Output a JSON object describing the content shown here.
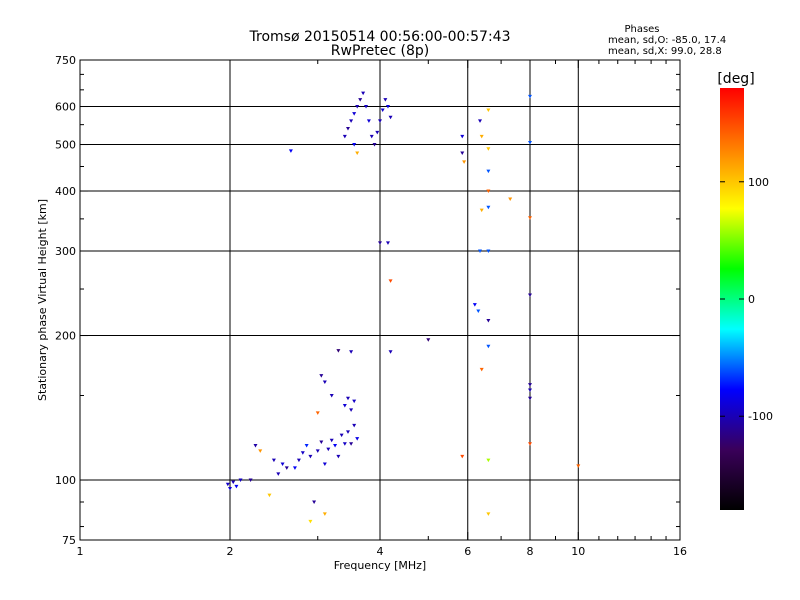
{
  "chart_data": {
    "type": "scatter",
    "title": "Tromsø 20150514 00:56:00-00:57:43",
    "subtitle": "RwPretec (8p)",
    "xlabel": "Frequency [MHz]",
    "ylabel": "Stationary phase Virtual Height [km]",
    "x_scale": "log2",
    "y_scale": "log",
    "xlim": [
      1,
      16
    ],
    "ylim": [
      75,
      750
    ],
    "x_ticks": [
      1,
      2,
      4,
      6,
      8,
      10,
      16
    ],
    "x_tick_labels": [
      "1",
      "2",
      "4",
      "6",
      "8",
      "10",
      "16"
    ],
    "x_minor_ticks": [
      3,
      5,
      7,
      9,
      11,
      12,
      13,
      14,
      15
    ],
    "y_ticks": [
      75,
      100,
      200,
      300,
      400,
      500,
      600,
      750
    ],
    "y_tick_labels": [
      "75",
      "100",
      "200",
      "300",
      "400",
      "500",
      "600",
      "750"
    ],
    "y_minor_ticks": [
      80,
      90,
      150,
      250,
      350,
      450,
      550,
      650,
      700
    ],
    "grid": true,
    "legend_block": {
      "heading": "Phases",
      "lines": [
        "mean, sd,O: -85.0, 17.4",
        "mean, sd,X:  99.0, 28.8"
      ]
    },
    "colorbar": {
      "label": "[deg]",
      "range": [
        -180,
        180
      ],
      "ticks": [
        100,
        0,
        -100
      ],
      "tick_labels": [
        "100",
        "0",
        "-100"
      ]
    },
    "color_stops": [
      "#000000",
      "#3a005a",
      "#0000ff",
      "#00ffff",
      "#00ff00",
      "#ffff00",
      "#ff8000",
      "#ff0000"
    ],
    "points": [
      [
        1.98,
        98,
        -95
      ],
      [
        2.0,
        96,
        -90
      ],
      [
        2.03,
        99,
        -100
      ],
      [
        2.06,
        97,
        -80
      ],
      [
        2.1,
        100,
        -95
      ],
      [
        2.2,
        100,
        -110
      ],
      [
        2.25,
        118,
        -105
      ],
      [
        2.3,
        115,
        120
      ],
      [
        2.4,
        93,
        100
      ],
      [
        2.45,
        110,
        -100
      ],
      [
        2.5,
        103,
        -100
      ],
      [
        2.55,
        108,
        -90
      ],
      [
        2.6,
        106,
        -110
      ],
      [
        2.7,
        106,
        -80
      ],
      [
        2.75,
        110,
        -100
      ],
      [
        2.8,
        114,
        -95
      ],
      [
        2.85,
        118,
        -70
      ],
      [
        2.9,
        112,
        -100
      ],
      [
        3.0,
        115,
        -100
      ],
      [
        3.05,
        120,
        -110
      ],
      [
        3.1,
        108,
        -90
      ],
      [
        3.15,
        116,
        -100
      ],
      [
        3.2,
        121,
        -100
      ],
      [
        3.25,
        118,
        -80
      ],
      [
        3.3,
        112,
        -100
      ],
      [
        3.35,
        124,
        -100
      ],
      [
        3.4,
        119,
        -95
      ],
      [
        3.45,
        126,
        -100
      ],
      [
        3.5,
        119,
        -110
      ],
      [
        3.55,
        130,
        -100
      ],
      [
        3.6,
        122,
        -85
      ],
      [
        3.05,
        165,
        -110
      ],
      [
        3.1,
        160,
        -100
      ],
      [
        3.3,
        186,
        -120
      ],
      [
        3.5,
        185,
        -100
      ],
      [
        3.4,
        143,
        -90
      ],
      [
        3.45,
        148,
        -100
      ],
      [
        3.5,
        140,
        -100
      ],
      [
        3.55,
        146,
        -95
      ],
      [
        3.0,
        138,
        140
      ],
      [
        3.2,
        150,
        -100
      ],
      [
        2.95,
        90,
        -110
      ],
      [
        2.9,
        82,
        90
      ],
      [
        3.1,
        85,
        110
      ],
      [
        2.65,
        485,
        -80
      ],
      [
        3.4,
        520,
        -100
      ],
      [
        3.45,
        540,
        -110
      ],
      [
        3.5,
        560,
        -100
      ],
      [
        3.55,
        580,
        -90
      ],
      [
        3.6,
        600,
        -100
      ],
      [
        3.65,
        620,
        -110
      ],
      [
        3.7,
        640,
        -100
      ],
      [
        3.75,
        600,
        -95
      ],
      [
        3.8,
        560,
        -90
      ],
      [
        3.85,
        520,
        -100
      ],
      [
        3.9,
        500,
        -110
      ],
      [
        3.95,
        530,
        -100
      ],
      [
        4.0,
        560,
        -100
      ],
      [
        4.05,
        590,
        -90
      ],
      [
        4.1,
        620,
        -100
      ],
      [
        4.15,
        600,
        -85
      ],
      [
        4.2,
        570,
        -100
      ],
      [
        3.6,
        480,
        110
      ],
      [
        3.55,
        500,
        -80
      ],
      [
        4.0,
        312,
        -110
      ],
      [
        4.15,
        312,
        -100
      ],
      [
        4.2,
        260,
        150
      ],
      [
        4.2,
        185,
        -100
      ],
      [
        5.0,
        196,
        -120
      ],
      [
        5.85,
        520,
        -90
      ],
      [
        5.85,
        480,
        -110
      ],
      [
        5.9,
        460,
        120
      ],
      [
        5.85,
        112,
        150
      ],
      [
        6.2,
        232,
        -80
      ],
      [
        6.3,
        225,
        -60
      ],
      [
        6.35,
        560,
        -100
      ],
      [
        6.4,
        520,
        110
      ],
      [
        6.4,
        170,
        140
      ],
      [
        6.35,
        300,
        -60
      ],
      [
        6.4,
        365,
        110
      ],
      [
        6.6,
        590,
        100
      ],
      [
        6.6,
        490,
        100
      ],
      [
        6.6,
        440,
        -60
      ],
      [
        6.6,
        400,
        140
      ],
      [
        6.6,
        370,
        -60
      ],
      [
        6.6,
        300,
        -60
      ],
      [
        6.6,
        215,
        -110
      ],
      [
        6.6,
        190,
        -60
      ],
      [
        6.6,
        110,
        60
      ],
      [
        6.6,
        85,
        100
      ],
      [
        7.3,
        385,
        120
      ],
      [
        8.0,
        630,
        -60
      ],
      [
        8.0,
        505,
        -60
      ],
      [
        8.0,
        352,
        140
      ],
      [
        8.0,
        243,
        -110
      ],
      [
        8.0,
        158,
        -110
      ],
      [
        8.0,
        154,
        -100
      ],
      [
        8.0,
        148,
        -110
      ],
      [
        8.0,
        119,
        150
      ],
      [
        10.0,
        107,
        140
      ]
    ]
  }
}
